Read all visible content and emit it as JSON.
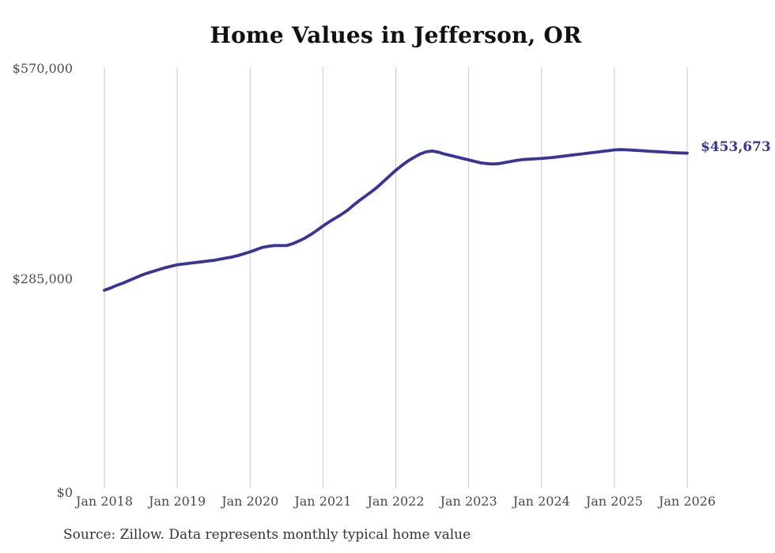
{
  "chart_data": {
    "type": "line",
    "title": "Home Values in Jefferson, OR",
    "source_note": "Source: Zillow. Data represents monthly typical home value",
    "x_tick_labels": [
      "Jan 2018",
      "Jan 2019",
      "Jan 2020",
      "Jan 2021",
      "Jan 2022",
      "Jan 2023",
      "Jan 2024",
      "Jan 2025",
      "Jan 2026"
    ],
    "y_ticks": [
      {
        "label": "$570,000",
        "value": 570000
      },
      {
        "label": "$285,000",
        "value": 285000
      },
      {
        "label": "$0",
        "value": 0
      }
    ],
    "ylim": [
      0,
      570000
    ],
    "x_range": {
      "start": "Jan 2018",
      "end": "Jan 2026",
      "interval": "monthly"
    },
    "grid": "vertical-yearly",
    "legend": "none",
    "colors": {
      "line": "#3733A1",
      "gridline": "#C9C9C9",
      "axis_text": "#4A4A4A",
      "title_text": "#111111"
    },
    "series": [
      {
        "name": "Typical home value",
        "color": "#3733A1",
        "end_label": "$453,673",
        "end_value": 453673,
        "values": [
          268000,
          271000,
          274500,
          277500,
          281000,
          284500,
          288000,
          291000,
          293500,
          296000,
          298500,
          300500,
          302500,
          303500,
          304500,
          305500,
          306500,
          307500,
          308500,
          310000,
          311500,
          313000,
          315000,
          317500,
          320000,
          323000,
          326000,
          327500,
          328500,
          328500,
          328500,
          331000,
          334500,
          338500,
          343500,
          349000,
          355000,
          360500,
          365500,
          370500,
          376000,
          383000,
          389500,
          395500,
          401500,
          408000,
          415500,
          423000,
          430500,
          437000,
          443000,
          448000,
          452500,
          455500,
          456500,
          455000,
          452500,
          450500,
          448500,
          446500,
          444500,
          442500,
          440500,
          439500,
          439000,
          439500,
          441000,
          442500,
          444000,
          445000,
          445500,
          446000,
          446500,
          447200,
          448000,
          449000,
          450000,
          451000,
          452000,
          453000,
          454000,
          455000,
          456000,
          457000,
          458000,
          458500,
          458200,
          457700,
          457200,
          456700,
          456200,
          455700,
          455200,
          454700,
          454200,
          453900,
          453673
        ]
      }
    ]
  }
}
